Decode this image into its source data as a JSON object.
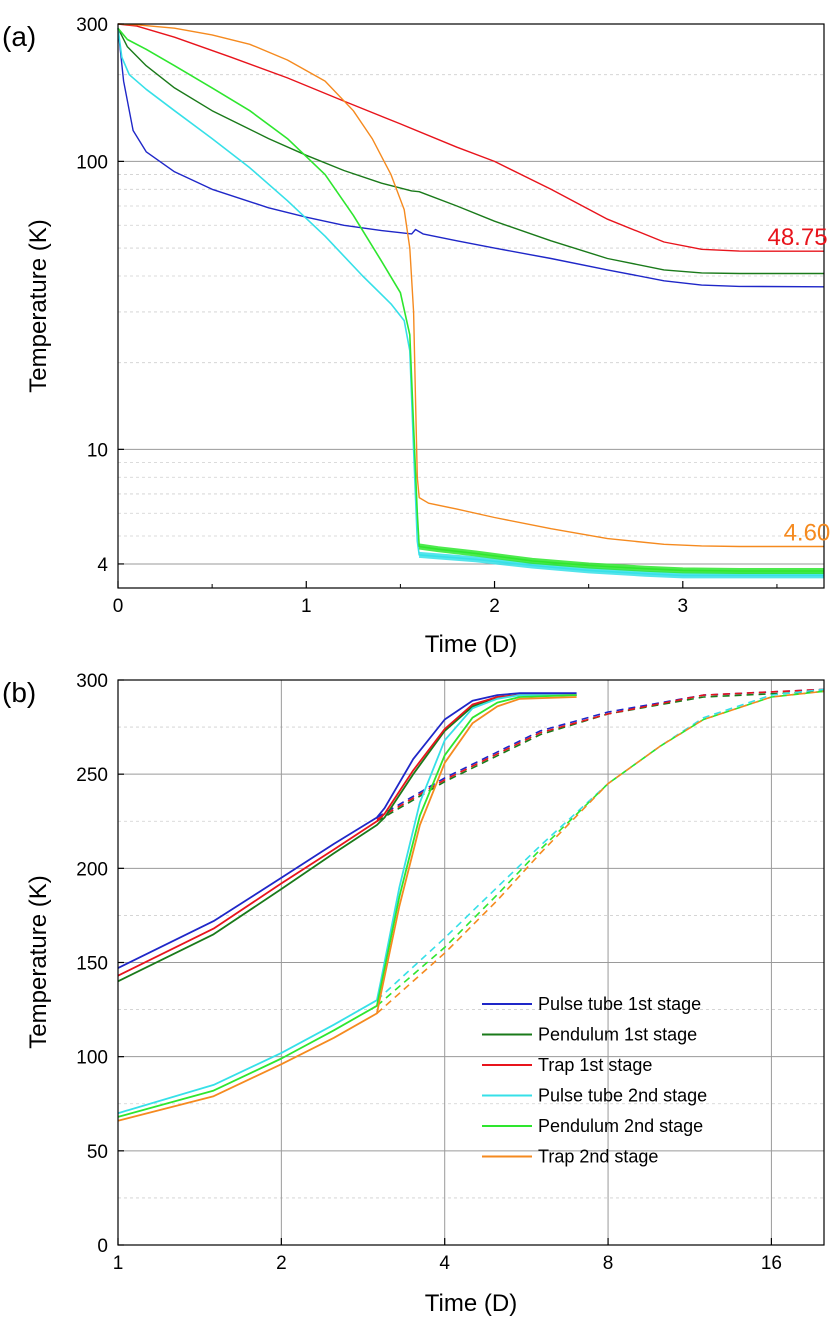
{
  "chart_data": [
    {
      "type": "line",
      "panel_label": "(a)",
      "xlabel": "Time (D)",
      "ylabel": "Temperature (K)",
      "xscale": "linear",
      "yscale": "log",
      "xlim": [
        0,
        3.75
      ],
      "ylim": [
        3.3,
        300
      ],
      "xticks": [
        0,
        1,
        2,
        3
      ],
      "yticks": [
        4,
        10,
        100,
        300
      ],
      "grid": true,
      "annotations": [
        {
          "text": "48.75",
          "x": 3.45,
          "y": 48.75,
          "color": "#e8141c"
        },
        {
          "text": "4.60",
          "x": 3.5,
          "y": 4.6,
          "color": "#f58a1f"
        }
      ],
      "series": [
        {
          "color": "#1f27c8",
          "x": [
            0,
            0.03,
            0.08,
            0.15,
            0.3,
            0.5,
            0.8,
            1.0,
            1.2,
            1.4,
            1.56,
            1.58,
            1.62,
            1.8,
            2.0,
            2.3,
            2.6,
            2.9,
            3.1,
            3.3,
            3.75
          ],
          "y": [
            290,
            190,
            128,
            108,
            92,
            80,
            69,
            64,
            60,
            57.5,
            56,
            58,
            56,
            53,
            50,
            46,
            42,
            38.5,
            37.2,
            36.8,
            36.7
          ]
        },
        {
          "color": "#1a7a1a",
          "x": [
            0,
            0.05,
            0.15,
            0.3,
            0.5,
            0.8,
            1.0,
            1.2,
            1.4,
            1.56,
            1.6,
            1.8,
            2.0,
            2.3,
            2.6,
            2.9,
            3.1,
            3.3,
            3.75
          ],
          "y": [
            290,
            250,
            215,
            180,
            150,
            120,
            105,
            93,
            84,
            79,
            78.5,
            70,
            62,
            53,
            46,
            42,
            41,
            40.8,
            40.8
          ]
        },
        {
          "color": "#e8141c",
          "x": [
            0,
            0.1,
            0.3,
            0.6,
            0.9,
            1.2,
            1.5,
            1.8,
            2.0,
            2.3,
            2.6,
            2.9,
            3.1,
            3.3,
            3.5,
            3.75
          ],
          "y": [
            300,
            295,
            270,
            230,
            195,
            162,
            135,
            112,
            100,
            80,
            63,
            52.5,
            49.5,
            48.8,
            48.75,
            48.75
          ]
        },
        {
          "color": "#36e0e8",
          "x": [
            0,
            0.02,
            0.06,
            0.15,
            0.3,
            0.5,
            0.7,
            0.9,
            1.1,
            1.3,
            1.45,
            1.52,
            1.55,
            1.57,
            1.59,
            1.6,
            1.7,
            1.9,
            2.2,
            2.5,
            2.8,
            3.0,
            3.3,
            3.75
          ],
          "y": [
            290,
            230,
            200,
            178,
            150,
            120,
            95,
            73,
            55,
            40,
            32,
            28,
            22,
            10,
            4.8,
            4.3,
            4.25,
            4.15,
            3.95,
            3.8,
            3.7,
            3.65,
            3.65,
            3.65
          ]
        },
        {
          "color": "#2ee62e",
          "x": [
            0,
            0.05,
            0.15,
            0.3,
            0.5,
            0.7,
            0.9,
            1.1,
            1.25,
            1.4,
            1.5,
            1.55,
            1.57,
            1.59,
            1.6,
            1.7,
            1.9,
            2.2,
            2.5,
            2.8,
            3.0,
            3.3,
            3.75
          ],
          "y": [
            290,
            265,
            245,
            215,
            180,
            150,
            120,
            90,
            65,
            45,
            35,
            25,
            12,
            6,
            4.6,
            4.5,
            4.35,
            4.1,
            3.95,
            3.85,
            3.8,
            3.78,
            3.78
          ]
        },
        {
          "color": "#f58a1f",
          "x": [
            0,
            0.1,
            0.3,
            0.5,
            0.7,
            0.9,
            1.1,
            1.25,
            1.35,
            1.45,
            1.52,
            1.55,
            1.57,
            1.58,
            1.59,
            1.6,
            1.65,
            1.8,
            2.0,
            2.3,
            2.6,
            2.9,
            3.1,
            3.3,
            3.75
          ],
          "y": [
            300,
            298,
            290,
            275,
            255,
            225,
            190,
            150,
            120,
            90,
            68,
            50,
            30,
            15,
            8,
            6.8,
            6.5,
            6.2,
            5.8,
            5.3,
            4.9,
            4.68,
            4.62,
            4.6,
            4.6
          ]
        }
      ]
    },
    {
      "type": "line",
      "panel_label": "(b)",
      "xlabel": "Time (D)",
      "ylabel": "Temperature (K)",
      "xscale": "log2",
      "yscale": "linear",
      "xlim": [
        1,
        20
      ],
      "ylim": [
        0,
        300
      ],
      "xticks": [
        1,
        2,
        4,
        8,
        16
      ],
      "yticks": [
        0,
        50,
        100,
        150,
        200,
        250,
        300
      ],
      "grid": true,
      "legend": "center-right",
      "series": [
        {
          "name": "Pulse tube 1st stage",
          "color": "#1f27c8",
          "x": [
            1,
            1.5,
            2,
            2.5,
            3.0,
            3.1,
            3.5,
            4.0,
            4.5,
            5.0,
            5.5,
            7.0
          ],
          "y": [
            147,
            172,
            195,
            213,
            227,
            232,
            258,
            279,
            289,
            292,
            293,
            293
          ],
          "projection_x": [
            3.0,
            4,
            6,
            8,
            12,
            20
          ],
          "projection_y": [
            227,
            248,
            273,
            283,
            292,
            295
          ]
        },
        {
          "name": "Pendulum 1st stage",
          "color": "#1a7a1a",
          "x": [
            1,
            1.5,
            2,
            2.5,
            3.0,
            3.1,
            3.5,
            4.0,
            4.5,
            5.0,
            5.5,
            7.0
          ],
          "y": [
            140,
            165,
            189,
            208,
            223,
            227,
            250,
            273,
            286,
            291,
            292,
            292
          ],
          "projection_x": [
            3.0,
            4,
            6,
            8,
            12,
            20
          ],
          "projection_y": [
            225,
            246,
            271,
            282,
            291,
            294
          ]
        },
        {
          "name": "Trap 1st stage",
          "color": "#e8141c",
          "x": [
            1,
            1.5,
            2,
            2.5,
            3.0,
            3.1,
            3.5,
            4.0,
            4.5,
            5.0,
            5.5,
            7.0
          ],
          "y": [
            143,
            168,
            192,
            210,
            225,
            229,
            252,
            274,
            287,
            291,
            292,
            292
          ],
          "projection_x": [
            3.0,
            4,
            6,
            8,
            12,
            20
          ],
          "projection_y": [
            226,
            247,
            272,
            282,
            292,
            295
          ]
        },
        {
          "name": "Pulse tube 2nd stage",
          "color": "#36e0e8",
          "x": [
            1,
            1.5,
            2,
            2.5,
            3.0,
            3.05,
            3.3,
            3.6,
            4.0,
            4.5,
            5.0,
            5.5,
            7.0
          ],
          "y": [
            70,
            85,
            102,
            117,
            130,
            140,
            190,
            235,
            268,
            285,
            290,
            292,
            292
          ],
          "projection_x": [
            3.0,
            4,
            5,
            6,
            8,
            10,
            12,
            16,
            20
          ],
          "projection_y": [
            130,
            163,
            190,
            212,
            245,
            265,
            280,
            292,
            295
          ]
        },
        {
          "name": "Pendulum 2nd stage",
          "color": "#2ee62e",
          "x": [
            1,
            1.5,
            2,
            2.5,
            3.0,
            3.05,
            3.3,
            3.6,
            4.0,
            4.5,
            5.0,
            5.5,
            7.0
          ],
          "y": [
            68,
            82,
            99,
            114,
            127,
            137,
            185,
            228,
            260,
            280,
            288,
            291,
            292
          ],
          "projection_x": [
            3.0,
            4,
            5,
            6,
            8,
            10,
            12,
            16,
            20
          ],
          "projection_y": [
            127,
            158,
            186,
            210,
            245,
            265,
            279,
            291,
            294
          ]
        },
        {
          "name": "Trap 2nd stage",
          "color": "#f58a1f",
          "x": [
            1,
            1.5,
            2,
            2.5,
            3.0,
            3.05,
            3.3,
            3.6,
            4.0,
            4.5,
            5.0,
            5.5,
            7.0
          ],
          "y": [
            66,
            79,
            96,
            110,
            123,
            133,
            180,
            223,
            256,
            277,
            286,
            290,
            291
          ],
          "projection_x": [
            3.0,
            4,
            5,
            6,
            8,
            10,
            12,
            16,
            20
          ],
          "projection_y": [
            123,
            155,
            183,
            208,
            245,
            265,
            279,
            291,
            294
          ]
        }
      ]
    }
  ]
}
